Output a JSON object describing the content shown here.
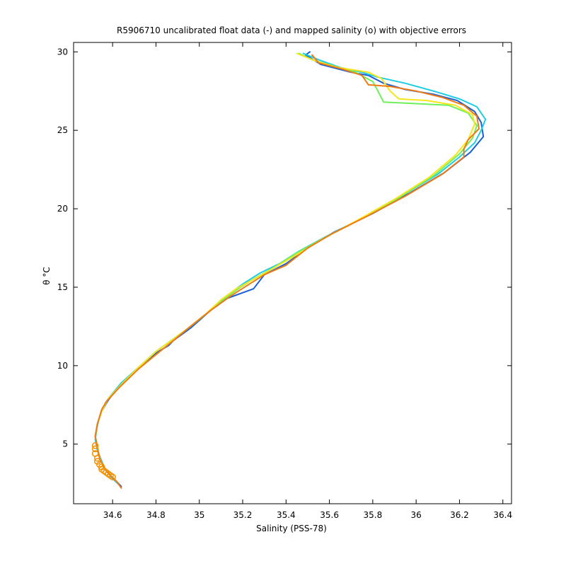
{
  "chart_data": {
    "type": "line",
    "title": "R5906710 uncalibrated float data (-) and mapped salinity (o) with objective errors",
    "xlabel": "Salinity (PSS-78)",
    "ylabel": "θ °C",
    "xlim": [
      34.42,
      36.44
    ],
    "ylim": [
      1.2,
      30.6
    ],
    "x_ticks": [
      34.6,
      34.8,
      35,
      35.2,
      35.4,
      35.6,
      35.8,
      36,
      36.2,
      36.4
    ],
    "x_tick_labels": [
      "34.6",
      "34.8",
      "35",
      "35.2",
      "35.4",
      "35.6",
      "35.8",
      "36",
      "36.2",
      "36.4"
    ],
    "y_ticks": [
      5,
      10,
      15,
      20,
      25,
      30
    ],
    "y_tick_labels": [
      "5",
      "10",
      "15",
      "20",
      "25",
      "30"
    ],
    "grid": false,
    "series": [
      {
        "color": "#1a5fd6",
        "points": [
          [
            35.51,
            30.0
          ],
          [
            35.49,
            29.8
          ],
          [
            35.56,
            29.2
          ],
          [
            35.7,
            28.7
          ],
          [
            35.78,
            28.5
          ],
          [
            35.85,
            28.0
          ],
          [
            35.95,
            27.6
          ],
          [
            36.08,
            27.3
          ],
          [
            36.19,
            26.9
          ],
          [
            36.27,
            26.2
          ],
          [
            36.3,
            25.5
          ],
          [
            36.31,
            24.6
          ],
          [
            36.25,
            23.6
          ],
          [
            36.13,
            22.3
          ],
          [
            35.97,
            21.0
          ],
          [
            35.8,
            19.7
          ],
          [
            35.62,
            18.5
          ],
          [
            35.5,
            17.5
          ],
          [
            35.4,
            16.5
          ],
          [
            35.3,
            15.8
          ],
          [
            35.25,
            14.9
          ],
          [
            35.13,
            14.3
          ],
          [
            35.05,
            13.5
          ],
          [
            34.96,
            12.4
          ],
          [
            34.88,
            11.6
          ],
          [
            34.86,
            11.3
          ],
          [
            34.8,
            10.8
          ],
          [
            34.72,
            9.8
          ],
          [
            34.63,
            8.7
          ],
          [
            34.58,
            7.8
          ],
          [
            34.55,
            7.1
          ],
          [
            34.53,
            6.3
          ],
          [
            34.52,
            5.5
          ],
          [
            34.53,
            4.8
          ],
          [
            34.54,
            4.1
          ],
          [
            34.56,
            3.5
          ],
          [
            34.59,
            3.0
          ],
          [
            34.62,
            2.6
          ],
          [
            34.64,
            2.3
          ]
        ]
      },
      {
        "color": "#1ecde0",
        "points": [
          [
            35.48,
            29.9
          ],
          [
            35.55,
            29.5
          ],
          [
            35.65,
            29.0
          ],
          [
            35.75,
            28.7
          ],
          [
            35.82,
            28.4
          ],
          [
            35.95,
            28.0
          ],
          [
            36.08,
            27.5
          ],
          [
            36.2,
            27.0
          ],
          [
            36.28,
            26.5
          ],
          [
            36.32,
            25.7
          ],
          [
            36.3,
            25.0
          ],
          [
            36.27,
            24.2
          ],
          [
            36.2,
            23.3
          ],
          [
            36.1,
            22.2
          ],
          [
            35.93,
            20.8
          ],
          [
            35.75,
            19.4
          ],
          [
            35.58,
            18.2
          ],
          [
            35.46,
            17.3
          ],
          [
            35.37,
            16.5
          ],
          [
            35.28,
            15.9
          ],
          [
            35.2,
            15.2
          ],
          [
            35.13,
            14.5
          ],
          [
            35.06,
            13.6
          ],
          [
            34.96,
            12.5
          ],
          [
            34.88,
            11.7
          ],
          [
            34.8,
            10.9
          ],
          [
            34.72,
            9.9
          ],
          [
            34.64,
            8.9
          ],
          [
            34.58,
            7.9
          ],
          [
            34.55,
            7.2
          ],
          [
            34.53,
            6.2
          ],
          [
            34.52,
            5.3
          ],
          [
            34.53,
            4.6
          ],
          [
            34.55,
            3.9
          ],
          [
            34.57,
            3.3
          ],
          [
            34.6,
            2.8
          ],
          [
            34.63,
            2.4
          ]
        ]
      },
      {
        "color": "#6ef05a",
        "points": [
          [
            35.46,
            29.9
          ],
          [
            35.52,
            29.5
          ],
          [
            35.62,
            29.1
          ],
          [
            35.72,
            28.7
          ],
          [
            35.8,
            28.1
          ],
          [
            35.82,
            27.6
          ],
          [
            35.85,
            26.8
          ],
          [
            36.0,
            26.7
          ],
          [
            36.15,
            26.6
          ],
          [
            36.24,
            26.1
          ],
          [
            36.28,
            25.3
          ],
          [
            36.26,
            24.5
          ],
          [
            36.2,
            23.5
          ],
          [
            36.08,
            22.1
          ],
          [
            35.92,
            20.7
          ],
          [
            35.74,
            19.3
          ],
          [
            35.57,
            18.1
          ],
          [
            35.45,
            17.2
          ],
          [
            35.35,
            16.3
          ],
          [
            35.26,
            15.6
          ],
          [
            35.19,
            15.0
          ],
          [
            35.12,
            14.3
          ],
          [
            35.05,
            13.5
          ],
          [
            34.95,
            12.4
          ],
          [
            34.87,
            11.6
          ],
          [
            34.8,
            10.9
          ],
          [
            34.72,
            9.9
          ],
          [
            34.64,
            8.8
          ],
          [
            34.58,
            7.9
          ],
          [
            34.55,
            7.1
          ],
          [
            34.53,
            6.3
          ],
          [
            34.52,
            5.4
          ]
        ]
      },
      {
        "color": "#f5e61a",
        "points": [
          [
            35.45,
            29.9
          ],
          [
            35.54,
            29.4
          ],
          [
            35.64,
            29.0
          ],
          [
            35.78,
            28.7
          ],
          [
            35.84,
            28.3
          ],
          [
            35.88,
            27.5
          ],
          [
            35.92,
            27.0
          ],
          [
            36.05,
            26.9
          ],
          [
            36.18,
            26.6
          ],
          [
            36.26,
            26.0
          ],
          [
            36.27,
            25.4
          ],
          [
            36.24,
            24.4
          ],
          [
            36.18,
            23.4
          ],
          [
            36.06,
            22.0
          ],
          [
            35.9,
            20.6
          ],
          [
            35.72,
            19.2
          ],
          [
            35.56,
            18.0
          ],
          [
            35.44,
            17.0
          ],
          [
            35.34,
            16.2
          ],
          [
            35.25,
            15.5
          ],
          [
            35.17,
            14.9
          ],
          [
            35.1,
            14.2
          ],
          [
            35.03,
            13.3
          ],
          [
            34.94,
            12.3
          ],
          [
            34.87,
            11.6
          ],
          [
            34.8,
            10.9
          ],
          [
            34.72,
            9.9
          ],
          [
            34.64,
            8.8
          ],
          [
            34.58,
            7.9
          ],
          [
            34.55,
            7.1
          ],
          [
            34.53,
            6.3
          ],
          [
            34.52,
            5.5
          ]
        ]
      },
      {
        "color": "#f07a14",
        "points": [
          [
            35.52,
            29.8
          ],
          [
            35.55,
            29.3
          ],
          [
            35.66,
            28.9
          ],
          [
            35.75,
            28.5
          ],
          [
            35.78,
            27.9
          ],
          [
            35.88,
            27.8
          ],
          [
            36.0,
            27.5
          ],
          [
            36.12,
            27.1
          ],
          [
            36.22,
            26.6
          ],
          [
            36.28,
            25.9
          ],
          [
            36.29,
            25.1
          ],
          [
            36.24,
            24.4
          ],
          [
            36.22,
            23.8
          ],
          [
            36.22,
            23.3
          ],
          [
            36.12,
            22.2
          ],
          [
            35.95,
            20.8
          ],
          [
            35.77,
            19.5
          ],
          [
            35.61,
            18.4
          ],
          [
            35.5,
            17.5
          ],
          [
            35.4,
            16.4
          ],
          [
            35.3,
            15.8
          ],
          [
            35.22,
            15.1
          ],
          [
            35.14,
            14.4
          ],
          [
            35.05,
            13.5
          ],
          [
            34.95,
            12.4
          ],
          [
            34.88,
            11.6
          ],
          [
            34.8,
            10.7
          ],
          [
            34.72,
            9.8
          ],
          [
            34.63,
            8.6
          ],
          [
            34.57,
            7.7
          ],
          [
            34.55,
            7.2
          ],
          [
            34.53,
            6.3
          ],
          [
            34.52,
            5.5
          ],
          [
            34.53,
            4.8
          ],
          [
            34.54,
            4.1
          ],
          [
            34.56,
            3.5
          ],
          [
            34.59,
            3.0
          ],
          [
            34.62,
            2.6
          ],
          [
            34.64,
            2.2
          ]
        ]
      }
    ],
    "mapped_points": {
      "color": "#f39200",
      "points": [
        [
          34.52,
          4.9
        ],
        [
          34.52,
          4.7
        ],
        [
          34.52,
          4.4
        ],
        [
          34.53,
          4.1
        ],
        [
          34.53,
          3.9
        ],
        [
          34.54,
          3.7
        ],
        [
          34.55,
          3.55
        ],
        [
          34.55,
          3.4
        ],
        [
          34.56,
          3.3
        ],
        [
          34.57,
          3.2
        ],
        [
          34.58,
          3.1
        ],
        [
          34.59,
          3.0
        ],
        [
          34.6,
          2.9
        ]
      ]
    }
  }
}
